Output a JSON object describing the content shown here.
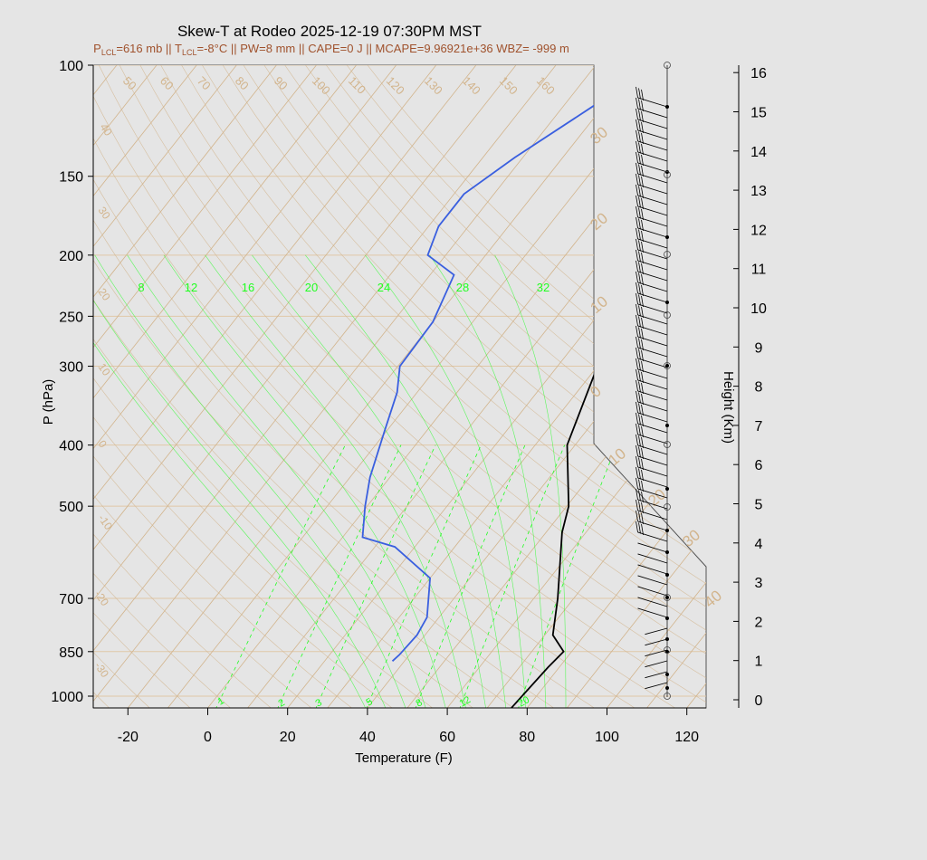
{
  "title": "Skew-T at Rodeo 2025-12-19 07:30PM MST",
  "subtitle": {
    "p_lcl_prefix": "P",
    "lcl_sub": "LCL",
    "p_lcl_value": "=616 mb || T",
    "t_lcl_value": "=-8°C || PW=8 mm || CAPE=0 J || MCAPE=9.96921e+36 WBZ= -999 m"
  },
  "colors": {
    "temperature": "#000000",
    "dewpoint": "#3a5fdf",
    "isotherm": "#d2b48c",
    "isobar": "#e0c8a8",
    "mixing_ratio": "#22ff22",
    "subtitle": "#a0522d"
  },
  "chart_data": {
    "type": "line",
    "title": "Skew-T at Rodeo 2025-12-19 07:30PM MST",
    "xlabel": "Temperature (F)",
    "ylabel": "P (hPa)",
    "y2label": "Height (Km)",
    "x_ticks": [
      "-20",
      "0",
      "20",
      "40",
      "60",
      "80",
      "100",
      "120"
    ],
    "x_tick_values": [
      -20,
      0,
      20,
      40,
      60,
      80,
      100,
      120
    ],
    "y_ticks": [
      "100",
      "150",
      "200",
      "250",
      "300",
      "400",
      "500",
      "700",
      "850",
      "1000"
    ],
    "y_tick_values": [
      100,
      150,
      200,
      250,
      300,
      400,
      500,
      700,
      850,
      1000
    ],
    "height_ticks": [
      "0",
      "1",
      "2",
      "3",
      "4",
      "5",
      "6",
      "7",
      "8",
      "9",
      "10",
      "11",
      "12",
      "13",
      "14",
      "15",
      "16"
    ],
    "xlim": [
      -29,
      125
    ],
    "ylim": [
      1050,
      100
    ],
    "y_scale": "log",
    "isotherm_labels": [
      "50",
      "60",
      "70",
      "80",
      "90",
      "100",
      "110",
      "120",
      "130",
      "140",
      "150",
      "160"
    ],
    "dry_adiabat_labels": [
      "40",
      "30",
      "20",
      "10",
      "0",
      "-10",
      "-20",
      "-30"
    ],
    "celsius_labels": [
      "30",
      "20",
      "10",
      "0",
      "10",
      "20",
      "30",
      "40"
    ],
    "mixing_ratio_labels": [
      "8",
      "12",
      "16",
      "20",
      "24",
      "28",
      "32"
    ],
    "mixing_ratio_bottom_labels": [
      "1",
      "2",
      "3",
      "5",
      "8",
      "12",
      "20"
    ],
    "series": [
      {
        "name": "Temperature",
        "points": [
          [
            76.0,
            1050
          ],
          [
            77.2,
            900
          ],
          [
            78.0,
            850
          ],
          [
            72.0,
            800
          ],
          [
            66.0,
            700
          ],
          [
            54.0,
            550
          ],
          [
            50.5,
            500
          ],
          [
            38.0,
            400
          ],
          [
            30.0,
            300
          ],
          [
            29.5,
            250
          ],
          [
            29.0,
            200
          ],
          [
            28.0,
            180
          ],
          [
            29.0,
            130
          ],
          [
            40.5,
            100
          ]
        ]
      },
      {
        "name": "Dewpoint",
        "points": [
          [
            37.0,
            880
          ],
          [
            37.5,
            860
          ],
          [
            38.0,
            800
          ],
          [
            37.0,
            750
          ],
          [
            30.0,
            650
          ],
          [
            15.0,
            580
          ],
          [
            5.0,
            560
          ],
          [
            -0.5,
            500
          ],
          [
            -5.0,
            450
          ],
          [
            -10.5,
            380
          ],
          [
            -15.0,
            330
          ],
          [
            -19.5,
            300
          ],
          [
            -20.0,
            255
          ],
          [
            -24.0,
            215
          ],
          [
            -34.5,
            200
          ],
          [
            -37.5,
            180
          ],
          [
            -37.5,
            160
          ],
          [
            -32.0,
            140
          ],
          [
            -15.0,
            100
          ]
        ]
      }
    ],
    "wind_barbs": "profile of wind barbs from surface to 16 km on right side"
  }
}
